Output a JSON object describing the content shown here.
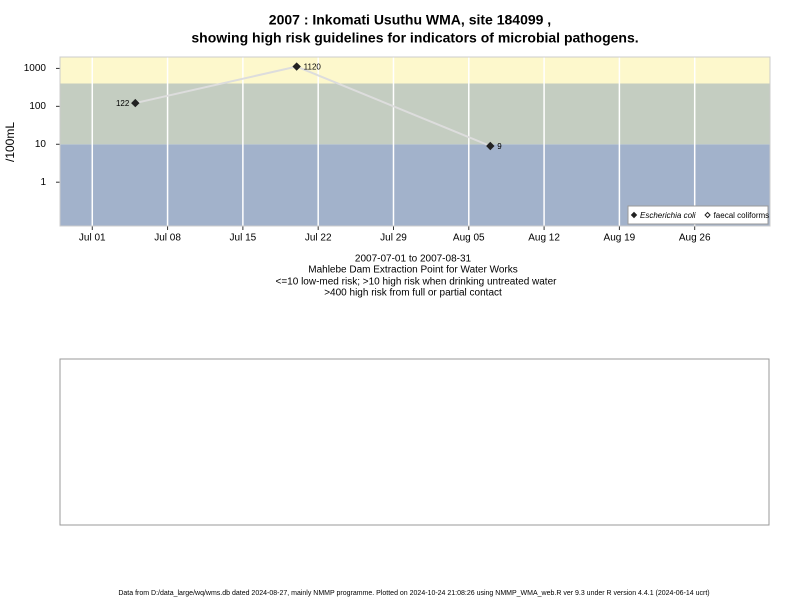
{
  "chart_data": {
    "type": "line",
    "title": "2007 : Inkomati Usuthu WMA, site 184099 ,",
    "subtitle": "showing high risk guidelines for indicators of microbial pathogens.",
    "y_label": "/100mL",
    "notes": [
      "2007-07-01 to 2007-08-31",
      "Mahlebe Dam Extraction Point for Water Works",
      "<=10 low-med risk; >10 high risk when drinking untreated water",
      ">400 high risk from full or partial contact"
    ],
    "footer": "Data from D:/data_large/wq/wms.db dated 2024-08-27, mainly NMMP programme. Plotted on 2024-10-24 21:08:26 using NMMP_WMA_web.R ver 9.3 under R version 4.4.1 (2024-06-14 ucrt)",
    "x": [
      "Jul 05",
      "Jul 20",
      "Aug 07"
    ],
    "series": [
      {
        "name": "Escherichia coli",
        "color": "#222222",
        "line_color": "#dddddd",
        "marker": "filled",
        "values": [
          122,
          1120,
          9
        ],
        "value_labels": [
          "122",
          "1120",
          "9"
        ]
      },
      {
        "name": "faecal coliforms",
        "color": "#222222",
        "marker": "open",
        "values": [
          null,
          null,
          null
        ]
      }
    ],
    "xlim": [
      "Jun 28",
      "Sep 02"
    ],
    "xticks": [
      "Jul 01",
      "Jul 08",
      "Jul 15",
      "Jul 22",
      "Jul 29",
      "Aug 05",
      "Aug 12",
      "Aug 19",
      "Aug 26"
    ],
    "ylim": [
      0.07,
      2000
    ],
    "yticks": [
      1,
      10,
      100,
      1000
    ],
    "log_y": true,
    "thresholds": [
      10,
      400
    ],
    "band_colors": [
      "#a2b2cb",
      "#c4cdc1",
      "#fdf8cc"
    ],
    "grid": "x",
    "legend": "bottom-right"
  }
}
